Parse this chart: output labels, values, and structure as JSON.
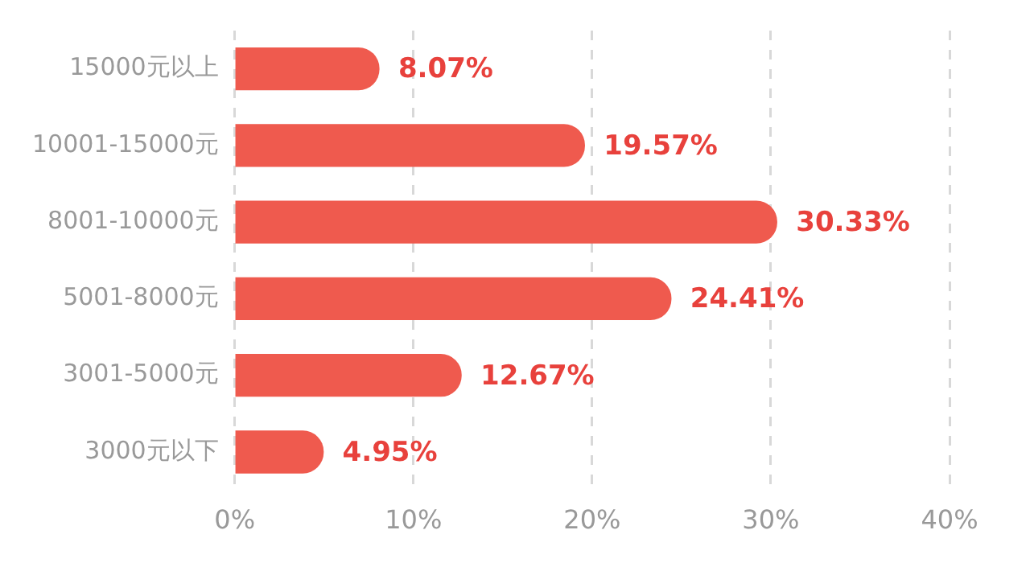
{
  "chart_data": {
    "type": "bar",
    "orientation": "horizontal",
    "categories": [
      "15000元以上",
      "10001-15000元",
      "8001-10000元",
      "5001-8000元",
      "3001-5000元",
      "3000元以下"
    ],
    "values": [
      8.07,
      19.57,
      30.33,
      24.41,
      12.67,
      4.95
    ],
    "value_labels": [
      "8.07%",
      "19.57%",
      "30.33%",
      "24.41%",
      "12.67%",
      "4.95%"
    ],
    "color": "#ef5a4e",
    "xlim": [
      0,
      40
    ],
    "xticks": [
      {
        "value": 0,
        "label": "0%"
      },
      {
        "value": 10,
        "label": "10%"
      },
      {
        "value": 20,
        "label": "20%"
      },
      {
        "value": 30,
        "label": "30%"
      },
      {
        "value": 40,
        "label": "40%"
      }
    ],
    "grid": "x",
    "legend": false
  }
}
